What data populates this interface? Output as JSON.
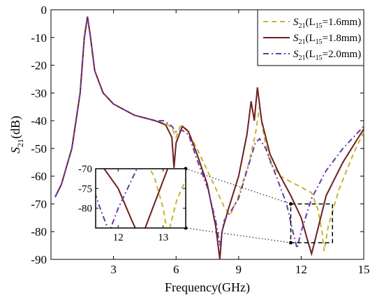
{
  "chart_data": {
    "type": "line",
    "xlabel": "Frequency(GHz)",
    "ylabel_main": "S",
    "ylabel_sub": "21",
    "ylabel_unit": "(dB)",
    "xlim": [
      0,
      15
    ],
    "ylim": [
      -90,
      0
    ],
    "xticks": [
      3,
      6,
      9,
      12,
      15
    ],
    "yticks": [
      0,
      -10,
      -20,
      -30,
      -40,
      -50,
      -60,
      -70,
      -80,
      -90
    ],
    "legend_position": "top-right",
    "series": [
      {
        "name_main": "S",
        "name_sub": "21",
        "name_rest": "(L",
        "name_sub2": "15",
        "name_tail": "=1.6mm)",
        "color": "#c8b42a",
        "dash": "dashed",
        "points": [
          [
            0.2,
            -67.5
          ],
          [
            0.5,
            -63
          ],
          [
            1.0,
            -50
          ],
          [
            1.4,
            -30
          ],
          [
            1.6,
            -10
          ],
          [
            1.75,
            -2.5
          ],
          [
            1.9,
            -10
          ],
          [
            2.1,
            -22
          ],
          [
            2.5,
            -30
          ],
          [
            3.0,
            -34
          ],
          [
            4.0,
            -38
          ],
          [
            5.0,
            -40
          ],
          [
            5.5,
            -41
          ],
          [
            5.8,
            -42.5
          ],
          [
            6.0,
            -46
          ],
          [
            6.2,
            -42
          ],
          [
            6.5,
            -43
          ],
          [
            7.0,
            -50
          ],
          [
            7.5,
            -58
          ],
          [
            8.0,
            -66
          ],
          [
            8.3,
            -71
          ],
          [
            8.6,
            -74
          ],
          [
            9.0,
            -67
          ],
          [
            9.5,
            -55
          ],
          [
            9.8,
            -45
          ],
          [
            10.0,
            -35
          ],
          [
            10.2,
            -45
          ],
          [
            10.5,
            -55
          ],
          [
            11.0,
            -60
          ],
          [
            11.5,
            -62
          ],
          [
            12.0,
            -64
          ],
          [
            12.5,
            -66
          ],
          [
            12.8,
            -72
          ],
          [
            13.0,
            -80
          ],
          [
            13.1,
            -87
          ],
          [
            13.3,
            -78
          ],
          [
            13.8,
            -65
          ],
          [
            14.5,
            -52
          ],
          [
            15.0,
            -44
          ]
        ]
      },
      {
        "name_main": "S",
        "name_sub": "21",
        "name_rest": "(L",
        "name_sub2": "15",
        "name_tail": "=1.8mm)",
        "color": "#6e1f1f",
        "dash": "solid",
        "points": [
          [
            0.2,
            -67.5
          ],
          [
            0.5,
            -63
          ],
          [
            1.0,
            -50
          ],
          [
            1.4,
            -30
          ],
          [
            1.6,
            -10
          ],
          [
            1.75,
            -2.5
          ],
          [
            1.9,
            -10
          ],
          [
            2.1,
            -22
          ],
          [
            2.5,
            -30
          ],
          [
            3.0,
            -34
          ],
          [
            4.0,
            -38
          ],
          [
            5.0,
            -40
          ],
          [
            5.5,
            -41.5
          ],
          [
            5.8,
            -46
          ],
          [
            5.9,
            -57
          ],
          [
            6.0,
            -48
          ],
          [
            6.3,
            -42
          ],
          [
            6.6,
            -44
          ],
          [
            7.0,
            -52
          ],
          [
            7.5,
            -63
          ],
          [
            7.9,
            -78
          ],
          [
            8.1,
            -90
          ],
          [
            8.2,
            -80
          ],
          [
            8.5,
            -72
          ],
          [
            9.0,
            -60
          ],
          [
            9.4,
            -45
          ],
          [
            9.6,
            -33
          ],
          [
            9.75,
            -40
          ],
          [
            9.9,
            -28
          ],
          [
            10.1,
            -40
          ],
          [
            10.5,
            -52
          ],
          [
            11.0,
            -60
          ],
          [
            11.5,
            -67
          ],
          [
            12.0,
            -75
          ],
          [
            12.3,
            -83
          ],
          [
            12.5,
            -88
          ],
          [
            12.7,
            -82
          ],
          [
            13.2,
            -67
          ],
          [
            14.0,
            -55
          ],
          [
            15.0,
            -43
          ]
        ]
      },
      {
        "name_main": "S",
        "name_sub": "21",
        "name_rest": "(L",
        "name_sub2": "15",
        "name_tail": "=2.0mm)",
        "color": "#6a3aa8",
        "dash": "dashdot",
        "points": [
          [
            0.2,
            -67.5
          ],
          [
            0.5,
            -63
          ],
          [
            1.0,
            -50
          ],
          [
            1.4,
            -30
          ],
          [
            1.6,
            -10
          ],
          [
            1.75,
            -2.5
          ],
          [
            1.9,
            -10
          ],
          [
            2.1,
            -22
          ],
          [
            2.5,
            -30
          ],
          [
            3.0,
            -34
          ],
          [
            4.0,
            -38
          ],
          [
            5.0,
            -40
          ],
          [
            5.4,
            -40
          ],
          [
            5.8,
            -42
          ],
          [
            6.0,
            -44
          ],
          [
            6.3,
            -43.5
          ],
          [
            6.6,
            -45
          ],
          [
            7.0,
            -54
          ],
          [
            7.5,
            -64
          ],
          [
            7.9,
            -76
          ],
          [
            8.1,
            -85
          ],
          [
            8.3,
            -76
          ],
          [
            8.6,
            -73
          ],
          [
            9.0,
            -68
          ],
          [
            9.4,
            -58
          ],
          [
            9.8,
            -48
          ],
          [
            10.0,
            -46.5
          ],
          [
            10.3,
            -50
          ],
          [
            10.8,
            -60
          ],
          [
            11.3,
            -70
          ],
          [
            11.6,
            -80
          ],
          [
            11.8,
            -86
          ],
          [
            12.0,
            -80
          ],
          [
            12.5,
            -68
          ],
          [
            13.2,
            -58
          ],
          [
            14.0,
            -50
          ],
          [
            15.0,
            -42
          ]
        ]
      }
    ],
    "inset": {
      "xlim": [
        11.5,
        13.5
      ],
      "ylim": [
        -85,
        -70
      ],
      "xticks": [
        12,
        13
      ],
      "yticks": [
        -70,
        -75,
        -80
      ],
      "zoom_box_xlim": [
        11.5,
        13.5
      ],
      "zoom_box_ylim": [
        -84,
        -70
      ]
    }
  }
}
